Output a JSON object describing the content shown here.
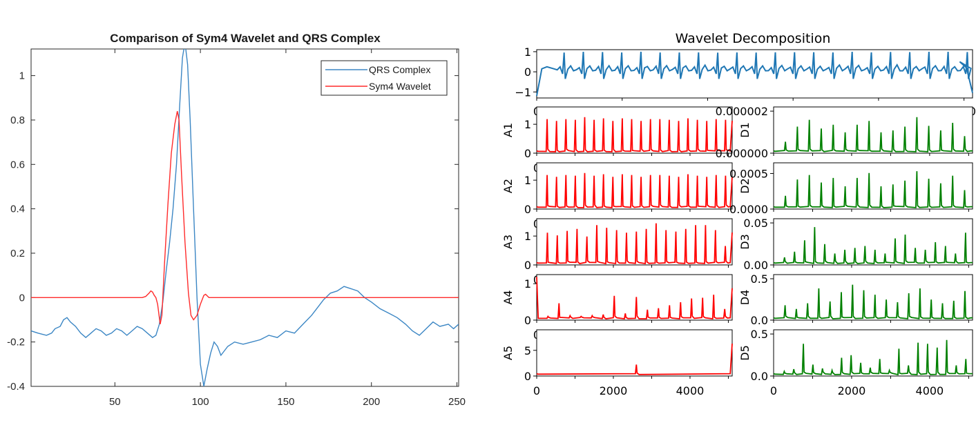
{
  "left_chart": {
    "title": "Comparison of Sym4 Wavelet and QRS Complex",
    "legend": [
      "QRS Complex",
      "Sym4 Wavelet"
    ],
    "xticks": [
      "50",
      "100",
      "150",
      "200",
      "250"
    ],
    "yticks": [
      "-0.4",
      "-0.2",
      "0",
      "0.2",
      "0.4",
      "0.6",
      "0.8",
      "1"
    ]
  },
  "right_chart": {
    "title": "Wavelet Decomposition",
    "signal_yticks": [
      "1",
      "0",
      "−1"
    ],
    "bottom_xticks": [
      "0",
      "2000",
      "4000"
    ],
    "approx_labels": [
      "A1",
      "A2",
      "A3",
      "A4",
      "A5"
    ],
    "detail_labels": [
      "D1",
      "D2",
      "D3",
      "D4",
      "D5"
    ],
    "approx_yticks": [
      [
        "1",
        "0"
      ],
      [
        "1",
        "0"
      ],
      [
        "1",
        "0"
      ],
      [
        "1",
        "0"
      ],
      [
        "5",
        "0"
      ]
    ],
    "detail_yticks": [
      [
        "0.000002",
        "0.000000"
      ],
      [
        "0.0005",
        "0.0000"
      ],
      [
        "0.05",
        "0.00"
      ],
      [
        "0.5",
        "0.0"
      ],
      [
        "0.5",
        "0.0"
      ]
    ],
    "clipped_tick": "0"
  },
  "chart_data": [
    {
      "type": "line",
      "title": "Comparison of Sym4 Wavelet and QRS Complex",
      "xlim": [
        1,
        251
      ],
      "ylim": [
        -0.4,
        1.12
      ],
      "grid": false,
      "legend_position": "top-right",
      "series": [
        {
          "name": "QRS Complex",
          "color": "#3b86c4",
          "points": [
            [
              1,
              -0.15
            ],
            [
              5,
              -0.16
            ],
            [
              10,
              -0.17
            ],
            [
              13,
              -0.16
            ],
            [
              15,
              -0.14
            ],
            [
              18,
              -0.13
            ],
            [
              20,
              -0.1
            ],
            [
              22,
              -0.09
            ],
            [
              24,
              -0.11
            ],
            [
              27,
              -0.13
            ],
            [
              30,
              -0.16
            ],
            [
              33,
              -0.18
            ],
            [
              36,
              -0.16
            ],
            [
              39,
              -0.14
            ],
            [
              42,
              -0.15
            ],
            [
              45,
              -0.17
            ],
            [
              48,
              -0.16
            ],
            [
              51,
              -0.14
            ],
            [
              54,
              -0.15
            ],
            [
              57,
              -0.17
            ],
            [
              60,
              -0.15
            ],
            [
              63,
              -0.13
            ],
            [
              66,
              -0.14
            ],
            [
              69,
              -0.16
            ],
            [
              72,
              -0.18
            ],
            [
              74,
              -0.17
            ],
            [
              76,
              -0.12
            ],
            [
              78,
              -0.02
            ],
            [
              80,
              0.12
            ],
            [
              82,
              0.25
            ],
            [
              84,
              0.4
            ],
            [
              86,
              0.6
            ],
            [
              88,
              0.88
            ],
            [
              89.5,
              1.08
            ],
            [
              91,
              1.15
            ],
            [
              92.5,
              1.05
            ],
            [
              94,
              0.8
            ],
            [
              96,
              0.4
            ],
            [
              98,
              0.0
            ],
            [
              100,
              -0.3
            ],
            [
              102,
              -0.4
            ],
            [
              104,
              -0.32
            ],
            [
              106,
              -0.25
            ],
            [
              108,
              -0.2
            ],
            [
              110,
              -0.22
            ],
            [
              112,
              -0.26
            ],
            [
              114,
              -0.24
            ],
            [
              116,
              -0.22
            ],
            [
              120,
              -0.2
            ],
            [
              125,
              -0.21
            ],
            [
              130,
              -0.2
            ],
            [
              135,
              -0.19
            ],
            [
              140,
              -0.17
            ],
            [
              145,
              -0.18
            ],
            [
              150,
              -0.15
            ],
            [
              155,
              -0.16
            ],
            [
              160,
              -0.12
            ],
            [
              165,
              -0.08
            ],
            [
              168,
              -0.05
            ],
            [
              172,
              -0.01
            ],
            [
              176,
              0.02
            ],
            [
              180,
              0.03
            ],
            [
              184,
              0.05
            ],
            [
              188,
              0.04
            ],
            [
              192,
              0.03
            ],
            [
              196,
              0.0
            ],
            [
              200,
              -0.02
            ],
            [
              205,
              -0.05
            ],
            [
              210,
              -0.07
            ],
            [
              215,
              -0.09
            ],
            [
              220,
              -0.12
            ],
            [
              224,
              -0.15
            ],
            [
              228,
              -0.17
            ],
            [
              232,
              -0.14
            ],
            [
              236,
              -0.11
            ],
            [
              240,
              -0.13
            ],
            [
              245,
              -0.12
            ],
            [
              248,
              -0.14
            ],
            [
              251,
              -0.12
            ]
          ]
        },
        {
          "name": "Sym4 Wavelet",
          "color": "#ff2a2a",
          "points": [
            [
              1,
              0.0
            ],
            [
              66,
              0.0
            ],
            [
              68,
              0.005
            ],
            [
              70,
              0.02
            ],
            [
              71,
              0.03
            ],
            [
              72,
              0.025
            ],
            [
              73,
              0.01
            ],
            [
              74,
              0.0
            ],
            [
              75,
              -0.03
            ],
            [
              76.5,
              -0.12
            ],
            [
              77.5,
              -0.08
            ],
            [
              79,
              0.15
            ],
            [
              81,
              0.42
            ],
            [
              83,
              0.65
            ],
            [
              85,
              0.78
            ],
            [
              86.5,
              0.84
            ],
            [
              87.5,
              0.8
            ],
            [
              89,
              0.55
            ],
            [
              91,
              0.25
            ],
            [
              93,
              0.02
            ],
            [
              94.5,
              -0.08
            ],
            [
              96,
              -0.1
            ],
            [
              98,
              -0.08
            ],
            [
              100,
              -0.03
            ],
            [
              102,
              0.01
            ],
            [
              103,
              0.015
            ],
            [
              105,
              0.0
            ],
            [
              251,
              0.0
            ]
          ]
        }
      ]
    },
    {
      "type": "line",
      "title": "Wavelet Decomposition",
      "xlim": [
        0,
        5100
      ],
      "ylim": [
        -1.3,
        1.1
      ],
      "panel": "signal",
      "series": [
        {
          "color": "#1f77b4",
          "beat_count": 22,
          "baseline": 0.1,
          "peak": 1.0
        }
      ]
    },
    {
      "type": "line",
      "panels": "approximation",
      "labels": [
        "A1",
        "A2",
        "A3",
        "A4",
        "A5"
      ],
      "xlim": [
        0,
        5100
      ],
      "color": "#ff0000",
      "ylims": [
        [
          0,
          1.6
        ],
        [
          0,
          1.6
        ],
        [
          0,
          1.6
        ],
        [
          0,
          1.25
        ],
        [
          0,
          9
        ]
      ],
      "peak_values": [
        [
          0.9,
          0.85,
          0.9,
          0.88,
          0.95,
          0.88,
          0.92,
          0.85,
          0.92,
          0.9,
          0.85,
          0.9,
          0.9,
          0.88,
          0.85,
          0.92,
          0.88,
          0.85,
          0.9,
          0.88
        ],
        [
          0.9,
          0.85,
          0.9,
          0.88,
          0.95,
          0.88,
          0.92,
          0.85,
          0.92,
          0.9,
          0.85,
          0.9,
          0.9,
          0.88,
          0.85,
          0.92,
          0.88,
          0.85,
          0.9,
          0.88
        ],
        [
          0.85,
          0.78,
          0.9,
          0.95,
          0.75,
          1.05,
          0.98,
          0.92,
          0.85,
          0.88,
          0.95,
          1.1,
          0.92,
          0.88,
          0.95,
          1.05,
          1.05,
          0.92,
          0.5
        ],
        [
          0.1,
          0.45,
          0.12,
          0.1,
          0.12,
          0.15,
          0.65,
          0.18,
          0.62,
          0.28,
          0.32,
          0.4,
          0.48,
          0.58,
          0.6,
          0.68,
          0.3
        ],
        [
          0.3
        ]
      ]
    },
    {
      "type": "line",
      "panels": "detail",
      "labels": [
        "D1",
        "D2",
        "D3",
        "D4",
        "D5"
      ],
      "xlim": [
        0,
        5100
      ],
      "color": "#008000",
      "ylims": [
        [
          0,
          2.2e-06
        ],
        [
          0,
          0.00065
        ],
        [
          0,
          0.055
        ],
        [
          0,
          0.55
        ],
        [
          0,
          0.55
        ]
      ],
      "peak_values": [
        [
          0.3,
          0.7,
          0.88,
          0.65,
          0.75,
          0.55,
          0.75,
          0.85,
          0.55,
          0.6,
          0.7,
          0.95,
          0.72,
          0.6,
          0.8,
          0.45
        ],
        [
          0.35,
          0.78,
          0.9,
          0.7,
          0.82,
          0.6,
          0.82,
          0.95,
          0.6,
          0.65,
          0.75,
          1.0,
          0.8,
          0.68,
          0.88,
          0.5
        ],
        [
          0.2,
          0.35,
          0.65,
          1.0,
          0.55,
          0.3,
          0.4,
          0.45,
          0.5,
          0.4,
          0.3,
          0.7,
          0.8,
          0.45,
          0.4,
          0.6,
          0.5,
          0.3,
          0.85
        ],
        [
          0.4,
          0.3,
          0.45,
          0.85,
          0.5,
          0.75,
          0.95,
          0.8,
          0.68,
          0.55,
          0.48,
          0.72,
          0.85,
          0.55,
          0.45,
          0.52,
          0.78
        ],
        [
          0.12,
          0.18,
          0.85,
          0.3,
          0.2,
          0.15,
          0.48,
          0.55,
          0.35,
          0.22,
          0.45,
          0.15,
          0.72,
          0.28,
          0.88,
          0.85,
          0.75,
          0.95,
          0.28,
          0.45
        ]
      ]
    }
  ]
}
